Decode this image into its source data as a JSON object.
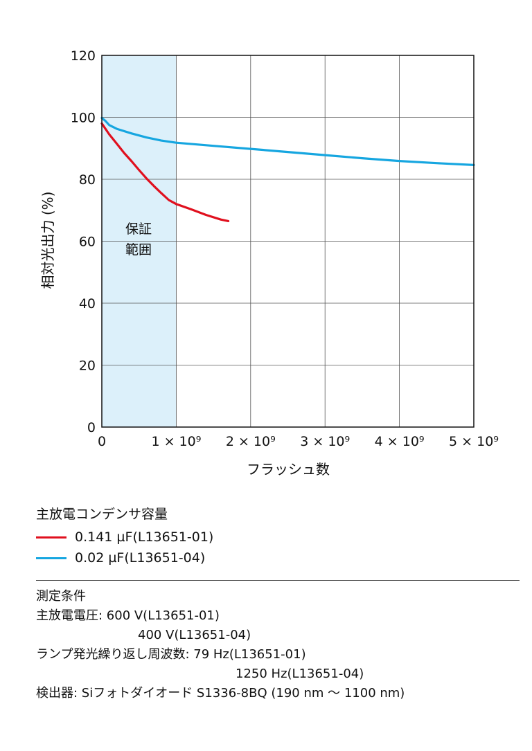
{
  "chart_data": {
    "type": "line",
    "xlabel": "フラッシュ数",
    "ylabel": "相対光出力 (%)",
    "xlim": [
      0,
      5000000000
    ],
    "ylim": [
      0,
      120
    ],
    "x_ticks": [
      0,
      1000000000,
      2000000000,
      3000000000,
      4000000000,
      5000000000
    ],
    "x_tick_labels": [
      "0",
      "1 × 10⁹",
      "2 × 10⁹",
      "3 × 10⁹",
      "4 × 10⁹",
      "5 × 10⁹"
    ],
    "y_ticks": [
      0,
      20,
      40,
      60,
      80,
      100,
      120
    ],
    "y_tick_labels": [
      "0",
      "20",
      "40",
      "60",
      "80",
      "100",
      "120"
    ],
    "grid": true,
    "shaded_region": {
      "x_range": [
        0,
        1000000000
      ],
      "label_line1": "保証",
      "label_line2": "範囲",
      "color": "#dcf0fa"
    },
    "series": [
      {
        "name": "0.141 µF(L13651-01)",
        "color": "#e0101e",
        "x": [
          0,
          100000000,
          200000000,
          300000000,
          400000000,
          500000000,
          600000000,
          700000000,
          800000000,
          900000000,
          1000000000,
          1200000000,
          1400000000,
          1600000000,
          1700000000
        ],
        "y": [
          98,
          94.5,
          91.5,
          88.5,
          85.8,
          83,
          80.3,
          77.8,
          75.5,
          73.3,
          72,
          70.3,
          68.5,
          67,
          66.5
        ]
      },
      {
        "name": "0.02 µF(L13651-04)",
        "color": "#16a6e0",
        "x": [
          0,
          50000000,
          100000000,
          200000000,
          400000000,
          600000000,
          800000000,
          1000000000,
          1500000000,
          2000000000,
          2500000000,
          3000000000,
          3500000000,
          4000000000,
          4500000000,
          5000000000
        ],
        "y": [
          99.8,
          98.8,
          97.5,
          96.3,
          94.8,
          93.5,
          92.5,
          91.8,
          90.8,
          89.8,
          88.8,
          87.8,
          86.8,
          85.9,
          85.2,
          84.6
        ]
      }
    ]
  },
  "legend": {
    "title": "主放電コンデンサ容量",
    "items": [
      {
        "label": "0.141 µF(L13651-01)",
        "color": "#e0101e"
      },
      {
        "label": "0.02 µF(L13651-04)",
        "color": "#16a6e0"
      }
    ]
  },
  "conditions": {
    "title": "測定条件",
    "voltage_line1": "主放電電圧: 600 V(L13651-01)",
    "voltage_line2": "400 V(L13651-04)",
    "freq_line1": "ランプ発光繰り返し周波数: 79 Hz(L13651-01)",
    "freq_line2": "1250 Hz(L13651-04)",
    "detector": "検出器: Siフォトダイオード S1336-8BQ (190 nm ～ 1100 nm)"
  }
}
